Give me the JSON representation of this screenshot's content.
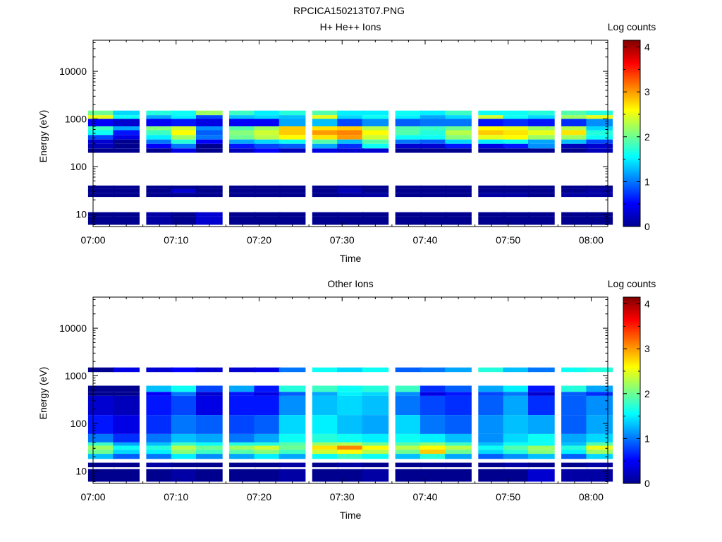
{
  "figure_title": "RPCICA150213T07.PNG",
  "chart_data": [
    {
      "type": "heatmap",
      "title": "H+ He++ Ions",
      "xlabel": "Time",
      "ylabel": "Energy (eV)",
      "y_scale": "log",
      "ylim": [
        5.5,
        45000
      ],
      "xlim": [
        "07:00",
        "08:02"
      ],
      "x_ticks": [
        "07:00",
        "07:10",
        "07:20",
        "07:30",
        "07:40",
        "07:50",
        "08:00"
      ],
      "y_ticks": [
        "10",
        "100",
        "1000",
        "10000"
      ],
      "colorbar": {
        "label": "Log counts",
        "range": [
          0,
          4.15
        ],
        "ticks": [
          "0",
          "1",
          "2",
          "3",
          "4"
        ]
      },
      "time_bins": [
        "07:01",
        "07:04",
        "07:08",
        "07:11",
        "07:14",
        "07:18",
        "07:21",
        "07:24",
        "07:28",
        "07:31",
        "07:34",
        "07:38",
        "07:41",
        "07:44",
        "07:48",
        "07:51",
        "07:54",
        "07:58",
        "08:01"
      ],
      "bands": [
        {
          "energy_range": [
            1200,
            1500
          ],
          "values": [
            2.0,
            1.4,
            1.7,
            1.6,
            2.2,
            1.8,
            1.5,
            1.7,
            1.9,
            1.5,
            1.5,
            1.6,
            1.5,
            1.8,
            1.6,
            1.6,
            1.7,
            1.9,
            1.7
          ]
        },
        {
          "energy_range": [
            1000,
            1200
          ],
          "values": [
            2.5,
            1.6,
            1.2,
            1.5,
            0.8,
            1.3,
            1.4,
            1.3,
            2.5,
            1.4,
            1.6,
            1.5,
            1.2,
            1.4,
            2.4,
            1.6,
            1.4,
            2.2,
            2.5
          ]
        },
        {
          "energy_range": [
            700,
            1000
          ],
          "values": [
            0.5,
            0.3,
            0.5,
            0.6,
            0.4,
            0.5,
            0.5,
            1.2,
            1.3,
            0.8,
            1.1,
            0.9,
            1.0,
            1.0,
            0.6,
            0.7,
            0.6,
            0.7,
            1.1
          ]
        },
        {
          "energy_range": [
            580,
            700
          ],
          "values": [
            1.8,
            1.2,
            2.1,
            2.4,
            1.1,
            1.9,
            2.2,
            2.8,
            2.7,
            2.8,
            2.3,
            1.9,
            1.8,
            2.0,
            2.6,
            2.5,
            2.2,
            2.3,
            1.4
          ]
        },
        {
          "energy_range": [
            460,
            580
          ],
          "values": [
            1.6,
            0.6,
            1.8,
            2.6,
            0.9,
            2.1,
            2.4,
            2.8,
            3.0,
            3.1,
            2.6,
            1.9,
            1.7,
            2.3,
            2.8,
            2.7,
            2.5,
            2.7,
            1.7
          ]
        },
        {
          "energy_range": [
            370,
            460
          ],
          "values": [
            0.8,
            0.4,
            1.5,
            2.2,
            1.0,
            2.0,
            2.3,
            2.6,
            2.7,
            3.0,
            2.4,
            1.6,
            1.6,
            2.1,
            2.5,
            2.6,
            2.2,
            2.2,
            1.6
          ]
        },
        {
          "energy_range": [
            300,
            370
          ],
          "values": [
            0.3,
            0.0,
            1.0,
            1.7,
            0.5,
            1.2,
            1.4,
            1.6,
            1.9,
            1.3,
            1.9,
            1.0,
            0.9,
            1.4,
            1.5,
            1.6,
            1.2,
            1.3,
            0.8
          ]
        },
        {
          "energy_range": [
            240,
            300
          ],
          "values": [
            0.2,
            0.0,
            0.5,
            1.0,
            0.0,
            0.6,
            0.8,
            0.9,
            1.2,
            0.7,
            1.6,
            0.3,
            0.3,
            0.6,
            0.4,
            0.6,
            1.1,
            0.2,
            0.3
          ]
        },
        {
          "energy_range": [
            195,
            240
          ],
          "values": [
            0.0,
            0.0,
            0.0,
            0.4,
            0.0,
            0.2,
            0.5,
            0.2,
            0.4,
            0.3,
            0.3,
            0.0,
            0.0,
            0.0,
            0.0,
            0.0,
            0.0,
            0.0,
            0.2
          ]
        },
        {
          "energy_range": [
            23,
            28
          ],
          "values": [
            0.0,
            0.0,
            0.0,
            0.0,
            0.0,
            0.0,
            0.0,
            0.0,
            0.0,
            0.05,
            0.1,
            0.0,
            0.0,
            0.0,
            0.1,
            0.1,
            0.0,
            0.1,
            0.1
          ]
        },
        {
          "energy_range": [
            28,
            34
          ],
          "values": [
            0.0,
            0.0,
            0.0,
            0.3,
            0.0,
            0.0,
            0.0,
            0.0,
            0.0,
            0.2,
            0.0,
            0.0,
            0.0,
            0.0,
            0.0,
            0.0,
            0.0,
            0.0,
            0.1
          ]
        },
        {
          "energy_range": [
            34,
            40
          ],
          "values": [
            0.0,
            0.0,
            0.0,
            0.0,
            0.0,
            0.0,
            0.0,
            0.0,
            0.0,
            0.1,
            0.0,
            0.0,
            0.0,
            0.0,
            0.0,
            0.0,
            0.0,
            0.0,
            0.0
          ]
        },
        {
          "energy_range": [
            9,
            11
          ],
          "values": [
            0.0,
            0.0,
            0.1,
            0.0,
            0.3,
            0.0,
            0.0,
            0.0,
            0.0,
            0.0,
            0.0,
            0.0,
            0.0,
            0.0,
            0.0,
            0.0,
            0.0,
            0.0,
            0.0
          ]
        },
        {
          "energy_range": [
            6,
            9
          ],
          "values": [
            0.0,
            0.0,
            0.1,
            0.0,
            0.3,
            0.0,
            0.0,
            0.0,
            0.0,
            0.0,
            0.0,
            0.0,
            0.0,
            0.0,
            0.0,
            0.0,
            0.0,
            0.0,
            0.0
          ]
        }
      ]
    },
    {
      "type": "heatmap",
      "title": "Other Ions",
      "xlabel": "Time",
      "ylabel": "Energy (eV)",
      "y_scale": "log",
      "ylim": [
        5.5,
        45000
      ],
      "xlim": [
        "07:00",
        "08:02"
      ],
      "x_ticks": [
        "07:00",
        "07:10",
        "07:20",
        "07:30",
        "07:40",
        "07:50",
        "08:00"
      ],
      "y_ticks": [
        "10",
        "100",
        "1000",
        "10000"
      ],
      "colorbar": {
        "label": "Log counts",
        "range": [
          0,
          4.15
        ],
        "ticks": [
          "0",
          "1",
          "2",
          "3",
          "4"
        ]
      },
      "time_bins": [
        "07:01",
        "07:04",
        "07:08",
        "07:11",
        "07:14",
        "07:18",
        "07:21",
        "07:24",
        "07:28",
        "07:31",
        "07:34",
        "07:38",
        "07:41",
        "07:44",
        "07:48",
        "07:51",
        "07:54",
        "07:58",
        "08:01"
      ],
      "bands": [
        {
          "energy_range": [
            1200,
            1500
          ],
          "values": [
            0.0,
            0.4,
            0.3,
            0.5,
            0.3,
            0.3,
            0.4,
            1.0,
            1.6,
            1.4,
            1.6,
            0.9,
            1.0,
            1.2,
            1.7,
            1.3,
            1.0,
            1.6,
            1.7
          ]
        },
        {
          "energy_range": [
            460,
            620
          ],
          "values": [
            0.0,
            0.0,
            1.3,
            1.6,
            0.8,
            1.2,
            0.6,
            1.7,
            1.8,
            1.6,
            1.7,
            1.8,
            0.7,
            0.9,
            1.2,
            1.5,
            0.6,
            1.7,
            1.2
          ]
        },
        {
          "energy_range": [
            380,
            460
          ],
          "values": [
            0.0,
            0.0,
            0.5,
            1.0,
            0.3,
            0.6,
            0.4,
            0.9,
            1.2,
            1.5,
            1.4,
            1.1,
            0.4,
            0.6,
            0.8,
            1.0,
            0.3,
            0.9,
            0.7
          ]
        },
        {
          "energy_range": [
            150,
            380
          ],
          "values": [
            0.3,
            0.2,
            0.6,
            0.8,
            0.4,
            0.6,
            0.6,
            1.1,
            1.3,
            1.4,
            1.3,
            1.0,
            0.8,
            0.7,
            0.9,
            1.2,
            0.7,
            0.9,
            1.1
          ]
        },
        {
          "energy_range": [
            60,
            150
          ],
          "values": [
            0.6,
            0.4,
            0.7,
            1.0,
            0.9,
            0.8,
            0.9,
            1.4,
            1.5,
            1.3,
            1.2,
            1.4,
            1.0,
            0.9,
            1.1,
            1.3,
            1.2,
            0.9,
            1.2
          ]
        },
        {
          "energy_range": [
            40,
            60
          ],
          "values": [
            1.0,
            0.7,
            1.0,
            1.3,
            1.2,
            1.0,
            1.2,
            1.6,
            1.7,
            1.6,
            1.5,
            1.6,
            1.5,
            1.3,
            1.1,
            1.4,
            1.6,
            1.2,
            1.4
          ]
        },
        {
          "energy_range": [
            34,
            40
          ],
          "values": [
            1.8,
            1.2,
            1.3,
            1.8,
            1.6,
            1.7,
            1.7,
            1.9,
            2.2,
            2.3,
            2.0,
            1.9,
            2.1,
            1.8,
            1.3,
            1.6,
            1.6,
            1.3,
            1.9
          ]
        },
        {
          "energy_range": [
            28,
            34
          ],
          "values": [
            2.2,
            1.6,
            1.7,
            2.3,
            2.0,
            2.2,
            2.4,
            2.0,
            2.7,
            3.1,
            2.6,
            2.3,
            2.6,
            2.3,
            1.6,
            1.9,
            2.2,
            1.7,
            2.5
          ]
        },
        {
          "energy_range": [
            23,
            28
          ],
          "values": [
            2.0,
            1.4,
            1.5,
            2.1,
            1.8,
            1.9,
            2.1,
            1.8,
            2.4,
            2.6,
            2.3,
            2.0,
            2.8,
            2.0,
            1.4,
            1.7,
            2.1,
            1.5,
            2.2
          ]
        },
        {
          "energy_range": [
            18,
            23
          ],
          "values": [
            1.3,
            0.9,
            1.0,
            1.5,
            1.1,
            1.2,
            1.5,
            1.2,
            1.6,
            1.8,
            1.6,
            1.3,
            1.7,
            1.2,
            0.9,
            1.1,
            1.3,
            0.9,
            1.4
          ]
        },
        {
          "energy_range": [
            12,
            15
          ],
          "values": [
            0.0,
            0.0,
            0.1,
            0.0,
            0.0,
            0.0,
            0.0,
            0.1,
            0.0,
            0.1,
            0.0,
            0.0,
            0.0,
            0.0,
            0.0,
            0.1,
            0.0,
            0.0,
            0.1
          ]
        },
        {
          "energy_range": [
            6,
            11
          ],
          "values": [
            0.0,
            0.0,
            0.0,
            0.1,
            0.0,
            0.0,
            0.0,
            0.1,
            0.0,
            0.0,
            0.1,
            0.0,
            0.0,
            0.0,
            0.0,
            0.0,
            0.3,
            0.1,
            0.1
          ]
        }
      ]
    }
  ]
}
